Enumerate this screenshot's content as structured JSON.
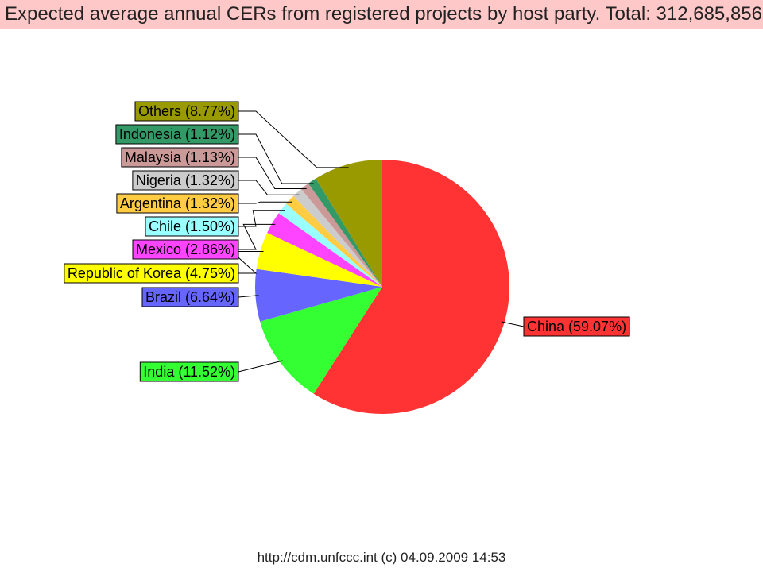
{
  "header": {
    "title": "Expected average annual CERs from registered projects by host party. Total: 312,685,856"
  },
  "footer": {
    "text": "http://cdm.unfccc.int (c) 04.09.2009 14:53"
  },
  "chart_data": {
    "type": "pie",
    "title": "Expected average annual CERs from registered projects by host party. Total: 312,685,856",
    "total": 312685856,
    "unit": "%",
    "slices": [
      {
        "name": "China",
        "value": 59.07,
        "label": "China (59.07%)",
        "color": "#ff3333"
      },
      {
        "name": "India",
        "value": 11.52,
        "label": "India (11.52%)",
        "color": "#33ff33"
      },
      {
        "name": "Brazil",
        "value": 6.64,
        "label": "Brazil (6.64%)",
        "color": "#6666ff"
      },
      {
        "name": "Republic of Korea",
        "value": 4.75,
        "label": "Republic of Korea (4.75%)",
        "color": "#ffff00"
      },
      {
        "name": "Mexico",
        "value": 2.86,
        "label": "Mexico (2.86%)",
        "color": "#ff44ff"
      },
      {
        "name": "Chile",
        "value": 1.5,
        "label": "Chile (1.50%)",
        "color": "#99ffff"
      },
      {
        "name": "Argentina",
        "value": 1.32,
        "label": "Argentina (1.32%)",
        "color": "#ffcc44"
      },
      {
        "name": "Nigeria",
        "value": 1.32,
        "label": "Nigeria (1.32%)",
        "color": "#cccccc"
      },
      {
        "name": "Malaysia",
        "value": 1.13,
        "label": "Malaysia (1.13%)",
        "color": "#cc9999"
      },
      {
        "name": "Indonesia",
        "value": 1.12,
        "label": "Indonesia (1.12%)",
        "color": "#339966"
      },
      {
        "name": "Others",
        "value": 8.77,
        "label": "Others (8.77%)",
        "color": "#999900"
      }
    ]
  }
}
